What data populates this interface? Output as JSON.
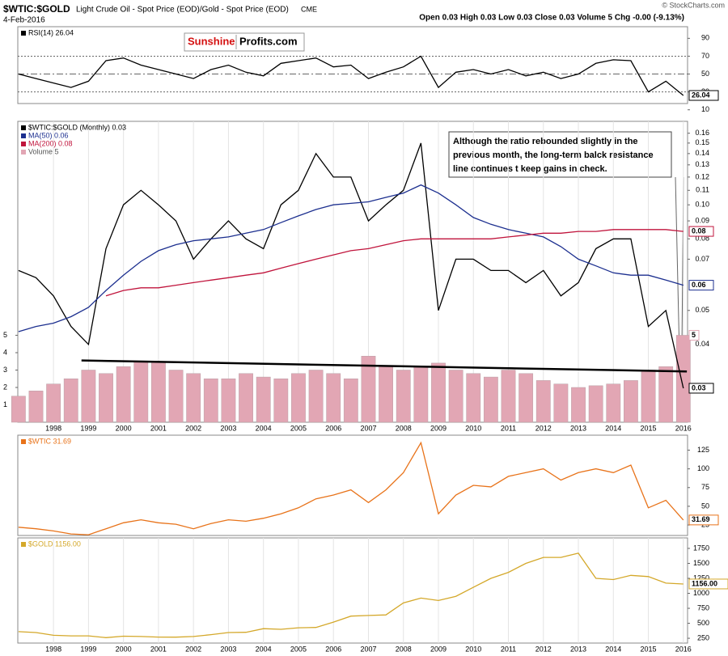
{
  "header": {
    "symbol": "$WTIC:$GOLD",
    "subtitle": "Light Crude Oil - Spot Price (EOD)/Gold - Spot Price (EOD)",
    "exchange": "CME",
    "date": "4-Feb-2016",
    "quote": "Open 0.03 High 0.03 Low 0.03 Close 0.03 Volume 5 Chg -0.00 (-9.13%)",
    "credit": "© StockCharts.com"
  },
  "logo": {
    "left": "Sunshine",
    "right": "Profits.com"
  },
  "chart_data": [
    {
      "type": "line",
      "xlim": [
        1996.98,
        2016.12
      ],
      "ylim": [
        17,
        103
      ],
      "yticks": [
        10,
        30,
        50,
        70,
        90
      ],
      "reference_lines": [
        30,
        50,
        70
      ],
      "x": [
        1997,
        1997.5,
        1998,
        1998.5,
        1999,
        1999.5,
        2000,
        2000.5,
        2001,
        2001.5,
        2002,
        2002.5,
        2003,
        2003.5,
        2004,
        2004.5,
        2005,
        2005.5,
        2006,
        2006.5,
        2007,
        2007.5,
        2008,
        2008.5,
        2009,
        2009.5,
        2010,
        2010.5,
        2011,
        2011.5,
        2012,
        2012.5,
        2013,
        2013.5,
        2014,
        2014.5,
        2015,
        2015.5,
        2016
      ],
      "series": [
        {
          "name": "RSI(14) 26.04",
          "color": "#000000",
          "end_label": "26.04",
          "values": [
            50,
            45,
            40,
            35,
            42,
            65,
            68,
            60,
            55,
            50,
            45,
            55,
            60,
            52,
            48,
            62,
            65,
            68,
            58,
            60,
            45,
            52,
            58,
            70,
            35,
            52,
            55,
            50,
            55,
            48,
            52,
            45,
            50,
            62,
            66,
            65,
            30,
            42,
            26.04
          ]
        }
      ]
    },
    {
      "type": "line",
      "log_scale": true,
      "xlim": [
        1996.98,
        2016.12
      ],
      "ylim": [
        0.024,
        0.173
      ],
      "yticks": [
        0.04,
        0.05,
        0.07,
        0.08,
        0.09,
        {
          "value": 0.1,
          "label": "0.10"
        },
        0.11,
        0.12,
        0.13,
        0.14,
        0.15,
        0.16
      ],
      "xticks": [
        1998,
        1999,
        2000,
        2001,
        2002,
        2003,
        2004,
        2005,
        2006,
        2007,
        2008,
        2009,
        2010,
        2011,
        2012,
        2013,
        2014,
        2015,
        2016
      ],
      "y2lim": [
        0,
        17.3
      ],
      "y2ticks": [
        1,
        2,
        3,
        4,
        5
      ],
      "x": [
        1997,
        1997.5,
        1998,
        1998.5,
        1999,
        1999.5,
        2000,
        2000.5,
        2001,
        2001.5,
        2002,
        2002.5,
        2003,
        2003.5,
        2004,
        2004.5,
        2005,
        2005.5,
        2006,
        2006.5,
        2007,
        2007.5,
        2008,
        2008.5,
        2009,
        2009.5,
        2010,
        2010.5,
        2011,
        2011.5,
        2012,
        2012.5,
        2013,
        2013.5,
        2014,
        2014.5,
        2015,
        2015.5,
        2016
      ],
      "series": [
        {
          "name": "$WTIC:$GOLD (Monthly) 0.03",
          "color": "#000000",
          "end_label": "0.03",
          "values": [
            0.065,
            0.062,
            0.055,
            0.045,
            0.04,
            0.075,
            0.1,
            0.11,
            0.1,
            0.09,
            0.07,
            0.08,
            0.09,
            0.08,
            0.075,
            0.1,
            0.11,
            0.14,
            0.12,
            0.12,
            0.09,
            0.1,
            0.11,
            0.15,
            0.05,
            0.07,
            0.07,
            0.065,
            0.065,
            0.06,
            0.065,
            0.055,
            0.06,
            0.075,
            0.08,
            0.08,
            0.045,
            0.05,
            0.03
          ]
        },
        {
          "name": "MA(50) 0.06",
          "color": "#1c2f8f",
          "end_label": "0.06",
          "values": [
            0.0435,
            0.045,
            0.046,
            0.048,
            0.051,
            0.057,
            0.063,
            0.069,
            0.074,
            0.077,
            0.079,
            0.08,
            0.081,
            0.083,
            0.085,
            0.089,
            0.093,
            0.097,
            0.1,
            0.101,
            0.102,
            0.105,
            0.108,
            0.114,
            0.108,
            0.1,
            0.092,
            0.088,
            0.085,
            0.083,
            0.081,
            0.076,
            0.07,
            0.067,
            0.064,
            0.063,
            0.063,
            0.061,
            0.059
          ]
        },
        {
          "name": "MA(200) 0.08",
          "color": "#c0143c",
          "end_label": "0.08",
          "values": [
            null,
            null,
            null,
            null,
            null,
            0.055,
            0.057,
            0.058,
            0.058,
            0.059,
            0.06,
            0.061,
            0.062,
            0.063,
            0.064,
            0.066,
            0.068,
            0.07,
            0.072,
            0.074,
            0.075,
            0.077,
            0.079,
            0.08,
            0.08,
            0.08,
            0.08,
            0.08,
            0.081,
            0.082,
            0.083,
            0.083,
            0.084,
            0.084,
            0.085,
            0.085,
            0.085,
            0.085,
            0.084
          ]
        },
        {
          "name": "Volume 5",
          "type": "bar",
          "axis": "y2",
          "color": "#e2a6b4",
          "end_label": "5",
          "values": [
            1.5,
            1.8,
            2.2,
            2.5,
            3,
            2.8,
            3.2,
            3.5,
            3.5,
            3,
            2.8,
            2.5,
            2.5,
            2.8,
            2.6,
            2.5,
            2.8,
            3,
            2.8,
            2.5,
            3.8,
            3.2,
            3,
            3.2,
            3.4,
            3,
            2.8,
            2.6,
            3,
            2.8,
            2.4,
            2.2,
            2,
            2.1,
            2.2,
            2.4,
            3,
            3.2,
            5
          ]
        }
      ],
      "trendline": {
        "x": [
          1998.8,
          2016.1
        ],
        "values": [
          0.036,
          0.0335
        ],
        "color": "#000000"
      },
      "annotation": [
        "Although the ratio rebounded slightly in the",
        "previous month, the long-term balck resistance",
        "line continues t keep gains in check."
      ]
    },
    {
      "type": "line",
      "xlim": [
        1996.98,
        2016.12
      ],
      "ylim": [
        11,
        145
      ],
      "yticks": [
        25,
        50,
        75,
        100,
        125
      ],
      "x": [
        1997,
        1997.5,
        1998,
        1998.5,
        1999,
        1999.5,
        2000,
        2000.5,
        2001,
        2001.5,
        2002,
        2002.5,
        2003,
        2003.5,
        2004,
        2004.5,
        2005,
        2005.5,
        2006,
        2006.5,
        2007,
        2007.5,
        2008,
        2008.5,
        2009,
        2009.5,
        2010,
        2010.5,
        2011,
        2011.5,
        2012,
        2012.5,
        2013,
        2013.5,
        2014,
        2014.5,
        2015,
        2015.5,
        2016
      ],
      "series": [
        {
          "name": "$WTIC 31.69",
          "color": "#e8731a",
          "end_label": "31.69",
          "values": [
            22,
            20,
            17,
            13,
            12,
            20,
            28,
            32,
            28,
            26,
            20,
            27,
            32,
            30,
            34,
            40,
            48,
            60,
            65,
            72,
            55,
            72,
            95,
            135,
            40,
            65,
            78,
            76,
            90,
            95,
            100,
            85,
            95,
            100,
            95,
            105,
            48,
            58,
            31.69
          ]
        }
      ]
    },
    {
      "type": "line",
      "xlim": [
        1996.98,
        2016.12
      ],
      "ylim": [
        170,
        1925
      ],
      "yticks": [
        250,
        500,
        750,
        1000,
        1250,
        1500,
        1750
      ],
      "xticks": [
        1998,
        1999,
        2000,
        2001,
        2002,
        2003,
        2004,
        2005,
        2006,
        2007,
        2008,
        2009,
        2010,
        2011,
        2012,
        2013,
        2014,
        2015,
        2016
      ],
      "x": [
        1997,
        1997.5,
        1998,
        1998.5,
        1999,
        1999.5,
        2000,
        2000.5,
        2001,
        2001.5,
        2002,
        2002.5,
        2003,
        2003.5,
        2004,
        2004.5,
        2005,
        2005.5,
        2006,
        2006.5,
        2007,
        2007.5,
        2008,
        2008.5,
        2009,
        2009.5,
        2010,
        2010.5,
        2011,
        2011.5,
        2012,
        2012.5,
        2013,
        2013.5,
        2014,
        2014.5,
        2015,
        2015.5,
        2016
      ],
      "series": [
        {
          "name": "$GOLD 1156.00",
          "color": "#d4a82a",
          "end_label": "1156.00",
          "values": [
            360,
            345,
            300,
            290,
            290,
            260,
            285,
            280,
            270,
            268,
            280,
            310,
            345,
            350,
            410,
            400,
            425,
            430,
            520,
            620,
            630,
            640,
            840,
            920,
            880,
            950,
            1100,
            1250,
            1350,
            1500,
            1600,
            1600,
            1670,
            1250,
            1230,
            1300,
            1280,
            1170,
            1156
          ]
        }
      ]
    }
  ]
}
